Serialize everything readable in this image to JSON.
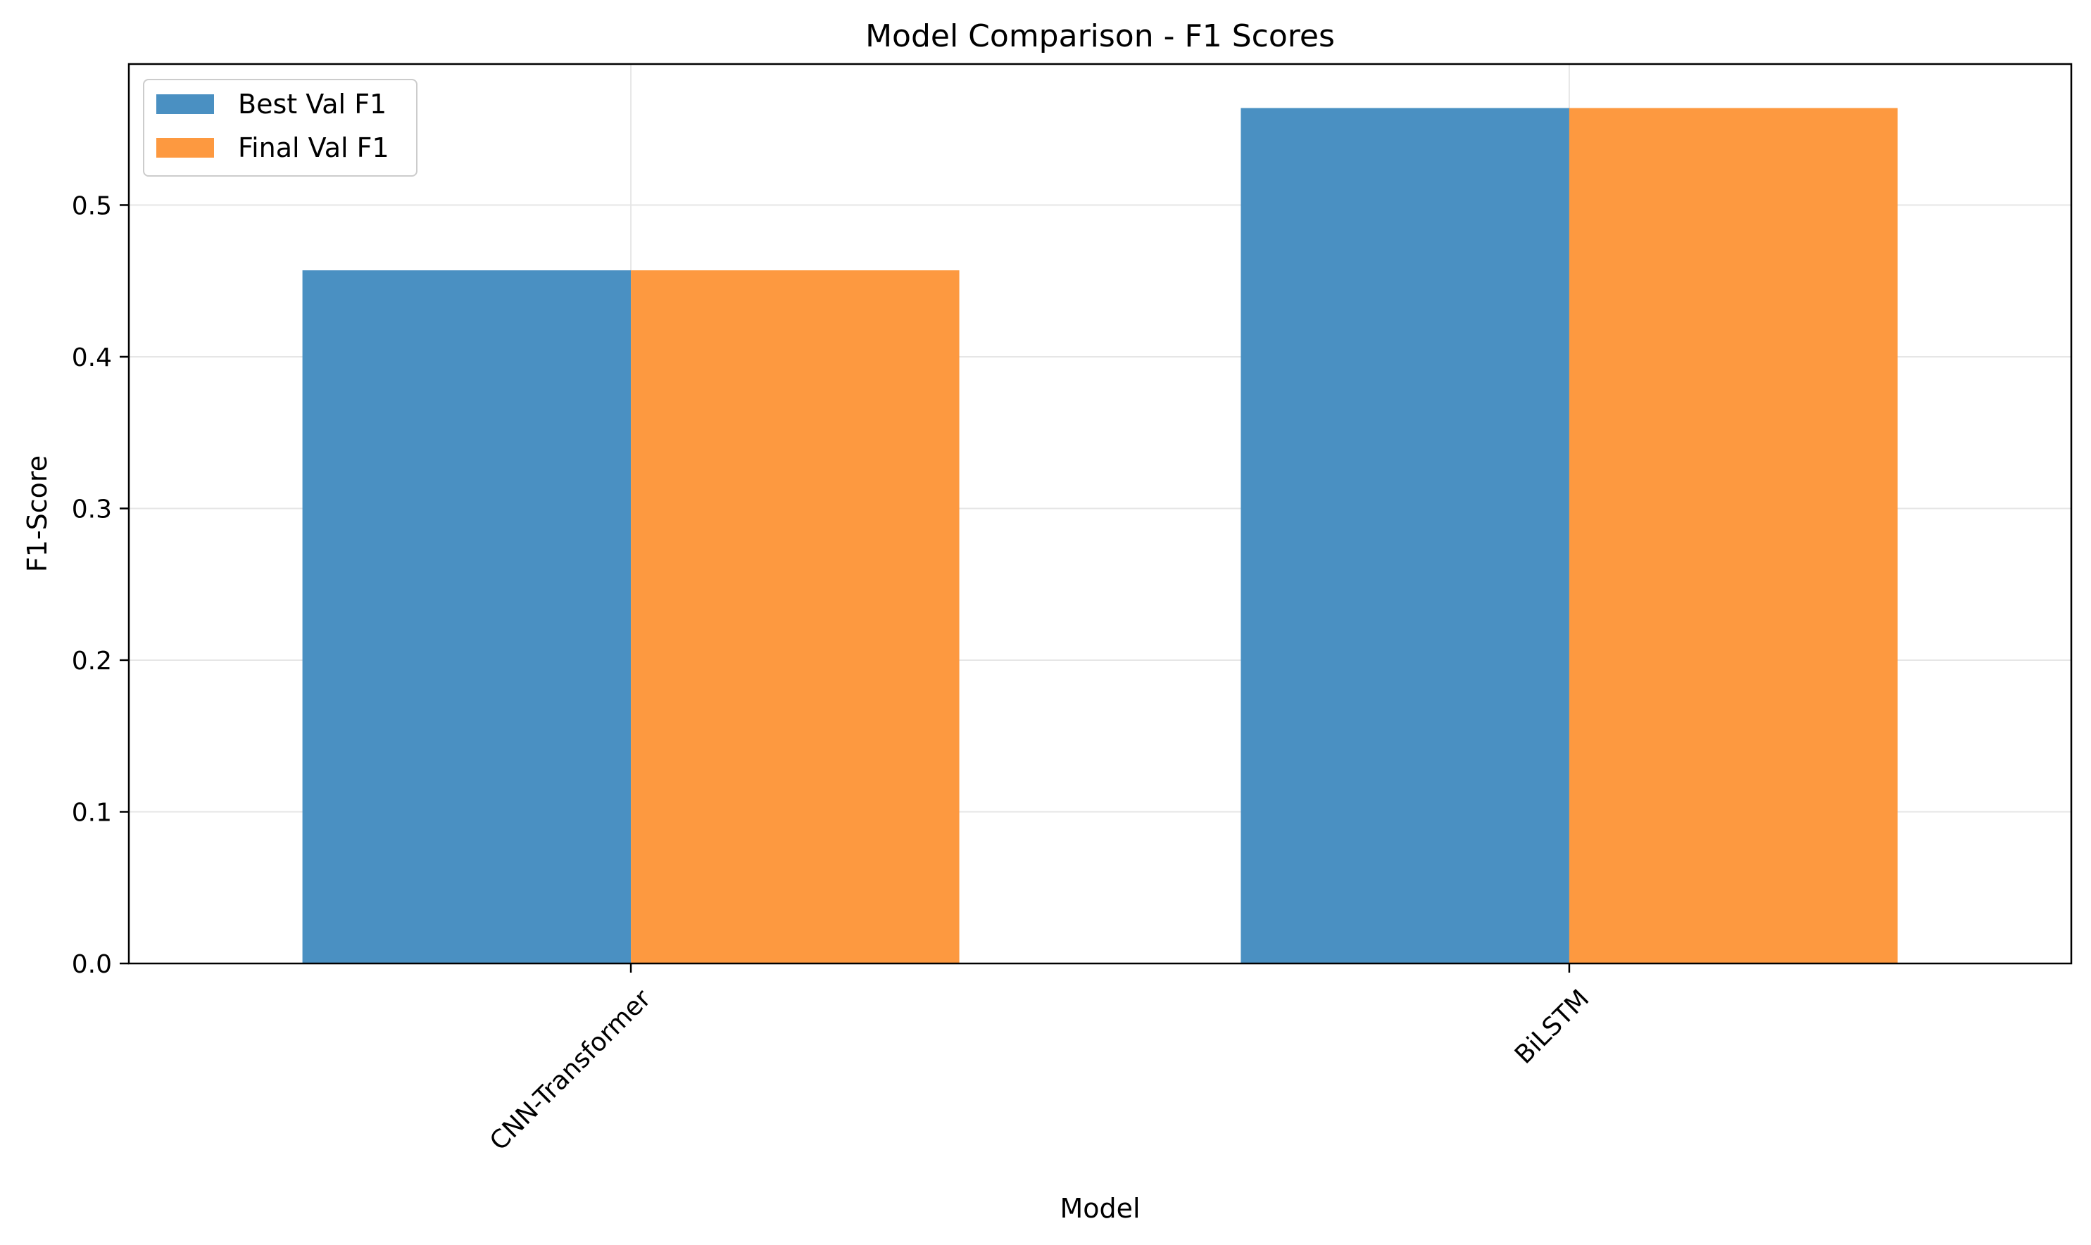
{
  "chart_data": {
    "type": "bar",
    "title": "Model Comparison - F1 Scores",
    "xlabel": "Model",
    "ylabel": "F1-Score",
    "categories": [
      "CNN-Transformer",
      "BiLSTM"
    ],
    "series": [
      {
        "name": "Best Val F1",
        "values": [
          0.457,
          0.564
        ],
        "color": "#4a90c2"
      },
      {
        "name": "Final Val F1",
        "values": [
          0.457,
          0.564
        ],
        "color": "#fd9940"
      }
    ],
    "ylim": [
      0,
      0.593
    ],
    "yticks": [
      0.0,
      0.1,
      0.2,
      0.3,
      0.4,
      0.5
    ],
    "ytick_labels": [
      "0.0",
      "0.1",
      "0.2",
      "0.3",
      "0.4",
      "0.5"
    ],
    "grid": true,
    "legend_position": "top-left",
    "xtick_rotation": "45"
  }
}
